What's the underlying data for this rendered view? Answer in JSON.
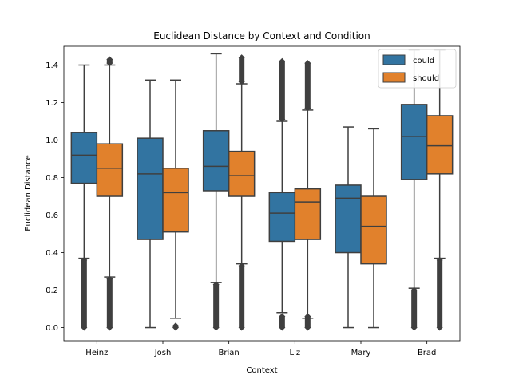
{
  "chart_data": {
    "type": "box",
    "title": "Euclidean Distance by Context and Condition",
    "xlabel": "Context",
    "ylabel": "Euclidean Distance",
    "ylim": [
      -0.07,
      1.5
    ],
    "yticks": [
      "0.0",
      "0.2",
      "0.4",
      "0.6",
      "0.8",
      "1.0",
      "1.2",
      "1.4"
    ],
    "categories": [
      "Heinz",
      "Josh",
      "Brian",
      "Liz",
      "Mary",
      "Brad"
    ],
    "legend": {
      "placement": "top-right"
    },
    "grid": false,
    "series": [
      {
        "name": "could",
        "color": "#3274a1",
        "boxes": [
          {
            "whislo": 0.37,
            "q1": 0.77,
            "med": 0.92,
            "q3": 1.04,
            "whishi": 1.4,
            "fliers_low": [
              0.0,
              0.36
            ],
            "fliers_high": []
          },
          {
            "whislo": 0.0,
            "q1": 0.47,
            "med": 0.82,
            "q3": 1.01,
            "whishi": 1.32,
            "fliers_low": [],
            "fliers_high": []
          },
          {
            "whislo": 0.24,
            "q1": 0.73,
            "med": 0.86,
            "q3": 1.05,
            "whishi": 1.46,
            "fliers_low": [
              0.0,
              0.23
            ],
            "fliers_high": []
          },
          {
            "whislo": 0.08,
            "q1": 0.46,
            "med": 0.61,
            "q3": 0.72,
            "whishi": 1.1,
            "fliers_low": [
              0.0,
              0.06
            ],
            "fliers_high": [
              1.11,
              1.42
            ]
          },
          {
            "whislo": 0.0,
            "q1": 0.4,
            "med": 0.69,
            "q3": 0.76,
            "whishi": 1.07,
            "fliers_low": [],
            "fliers_high": []
          },
          {
            "whislo": 0.21,
            "q1": 0.79,
            "med": 1.02,
            "q3": 1.19,
            "whishi": 1.48,
            "fliers_low": [
              0.0,
              0.2
            ],
            "fliers_high": []
          }
        ]
      },
      {
        "name": "should",
        "color": "#e1812c",
        "boxes": [
          {
            "whislo": 0.27,
            "q1": 0.7,
            "med": 0.85,
            "q3": 0.98,
            "whishi": 1.4,
            "fliers_low": [
              0.0,
              0.26
            ],
            "fliers_high": [
              1.41,
              1.43
            ]
          },
          {
            "whislo": 0.05,
            "q1": 0.51,
            "med": 0.72,
            "q3": 0.85,
            "whishi": 1.32,
            "fliers_low": [
              0.0,
              0.01
            ],
            "fliers_high": []
          },
          {
            "whislo": 0.34,
            "q1": 0.7,
            "med": 0.81,
            "q3": 0.94,
            "whishi": 1.3,
            "fliers_low": [
              0.0,
              0.33
            ],
            "fliers_high": [
              1.31,
              1.44
            ]
          },
          {
            "whislo": 0.05,
            "q1": 0.47,
            "med": 0.67,
            "q3": 0.74,
            "whishi": 1.16,
            "fliers_low": [
              0.0,
              0.06
            ],
            "fliers_high": [
              1.17,
              1.41
            ]
          },
          {
            "whislo": 0.0,
            "q1": 0.34,
            "med": 0.54,
            "q3": 0.7,
            "whishi": 1.06,
            "fliers_low": [],
            "fliers_high": []
          },
          {
            "whislo": 0.37,
            "q1": 0.82,
            "med": 0.97,
            "q3": 1.13,
            "whishi": 1.48,
            "fliers_low": [
              0.0,
              0.36
            ],
            "fliers_high": []
          }
        ]
      }
    ]
  }
}
